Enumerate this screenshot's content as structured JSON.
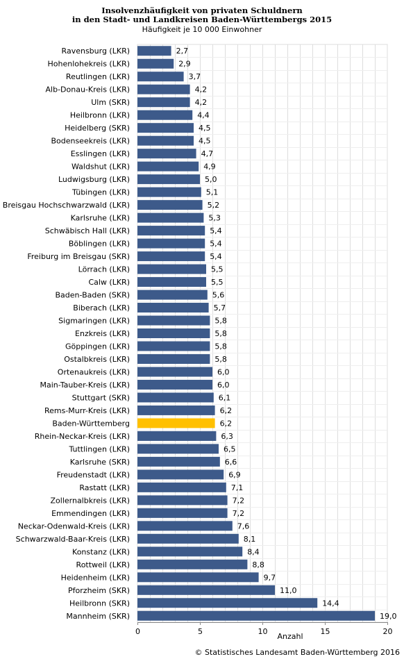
{
  "chart_data": {
    "type": "bar",
    "orientation": "horizontal",
    "title_lines": [
      "Insolvenzhäufigkeit von privaten Schuldnern",
      "in den Stadt- und Landkreisen Baden-Württembergs 2015"
    ],
    "subtitle": "Häufigkeit je 10 000 Einwohner",
    "xlabel": "Anzahl",
    "xlim": [
      0,
      20
    ],
    "xticks": [
      0,
      5,
      10,
      15,
      20
    ],
    "grid": true,
    "colors": {
      "bar": "#3d5a8a",
      "highlight": "#ffc000",
      "grid": "#dddddd"
    },
    "categories": [
      "Ravensburg (LKR)",
      "Hohenlohekreis (LKR)",
      "Reutlingen (LKR)",
      "Alb-Donau-Kreis (LKR)",
      "Ulm (SKR)",
      "Heilbronn (LKR)",
      "Heidelberg (SKR)",
      "Bodenseekreis (LKR)",
      "Esslingen (LKR)",
      "Waldshut (LKR)",
      "Ludwigsburg (LKR)",
      "Tübingen (LKR)",
      "Breisgau Hochschwarzwald (LKR)",
      "Karlsruhe (LKR)",
      "Schwäbisch Hall (LKR)",
      "Böblingen (LKR)",
      "Freiburg im Breisgau (SKR)",
      "Lörrach (LKR)",
      "Calw (LKR)",
      "Baden-Baden (SKR)",
      "Biberach (LKR)",
      "Sigmaringen (LKR)",
      "Enzkreis (LKR)",
      "Göppingen (LKR)",
      "Ostalbkreis (LKR)",
      "Ortenaukreis (LKR)",
      "Main-Tauber-Kreis (LKR)",
      "Stuttgart (SKR)",
      "Rems-Murr-Kreis (LKR)",
      "Baden-Württemberg",
      "Rhein-Neckar-Kreis (LKR)",
      "Tuttlingen (LKR)",
      "Karlsruhe (SKR)",
      "Freudenstadt (LKR)",
      "Rastatt (LKR)",
      "Zollernalbkreis (LKR)",
      "Emmendingen (LKR)",
      "Neckar-Odenwald-Kreis (LKR)",
      "Schwarzwald-Baar-Kreis (LKR)",
      "Konstanz (LKR)",
      "Rottweil (LKR)",
      "Heidenheim (LKR)",
      "Pforzheim (SKR)",
      "Heilbronn (SKR)",
      "Mannheim (SKR)"
    ],
    "values": [
      2.7,
      2.9,
      3.7,
      4.2,
      4.2,
      4.4,
      4.5,
      4.5,
      4.7,
      4.9,
      5.0,
      5.1,
      5.2,
      5.3,
      5.4,
      5.4,
      5.4,
      5.5,
      5.5,
      5.6,
      5.7,
      5.8,
      5.8,
      5.8,
      5.8,
      6.0,
      6.0,
      6.1,
      6.2,
      6.2,
      6.3,
      6.5,
      6.6,
      6.9,
      7.1,
      7.2,
      7.2,
      7.6,
      8.1,
      8.4,
      8.8,
      9.7,
      11.0,
      14.4,
      19.0
    ],
    "value_labels": [
      "2,7",
      "2,9",
      "3,7",
      "4,2",
      "4,2",
      "4,4",
      "4,5",
      "4,5",
      "4,7",
      "4,9",
      "5,0",
      "5,1",
      "5,2",
      "5,3",
      "5,4",
      "5,4",
      "5,4",
      "5,5",
      "5,5",
      "5,6",
      "5,7",
      "5,8",
      "5,8",
      "5,8",
      "5,8",
      "6,0",
      "6,0",
      "6,1",
      "6,2",
      "6,2",
      "6,3",
      "6,5",
      "6,6",
      "6,9",
      "7,1",
      "7,2",
      "7,2",
      "7,6",
      "8,1",
      "8,4",
      "8,8",
      "9,7",
      "11,0",
      "14,4",
      "19,0"
    ],
    "highlight_category": "Baden-Württemberg"
  },
  "footer": {
    "source": "© Statistisches Landesamt Baden-Württemberg 2016"
  }
}
